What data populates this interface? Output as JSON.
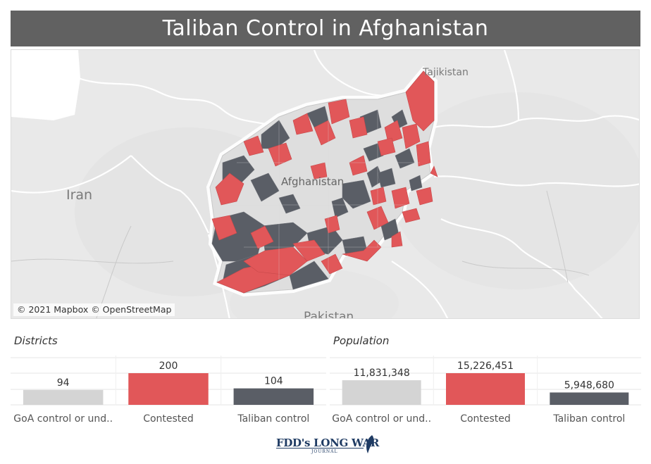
{
  "title": "Taliban Control in Afghanistan",
  "map": {
    "labels": {
      "iran": "Iran",
      "afghanistan": "Afghanistan",
      "tajikistan": "Tajikistan",
      "pakistan": "Pakistan"
    },
    "attribution": "© 2021 Mapbox © OpenStreetMap"
  },
  "colors": {
    "goa": "#d4d4d4",
    "contested": "#e15759",
    "taliban": "#5a5e66",
    "title_bg": "#616161"
  },
  "chart_data": [
    {
      "type": "bar",
      "title": "Districts",
      "categories": [
        "GoA control or und..",
        "Contested",
        "Taliban control"
      ],
      "values": [
        94,
        200,
        104
      ],
      "value_labels": [
        "94",
        "200",
        "104"
      ],
      "ylim": [
        0,
        200
      ],
      "grid": true
    },
    {
      "type": "bar",
      "title": "Population",
      "categories": [
        "GoA control or und..",
        "Contested",
        "Taliban control"
      ],
      "values": [
        11831348,
        15226451,
        5948680
      ],
      "value_labels": [
        "11,831,348",
        "15,226,451",
        "5,948,680"
      ],
      "ylim": [
        0,
        15226451
      ],
      "grid": true
    }
  ],
  "logo": {
    "text": "FDD's LONG WAR",
    "subtext": "JOURNAL"
  }
}
